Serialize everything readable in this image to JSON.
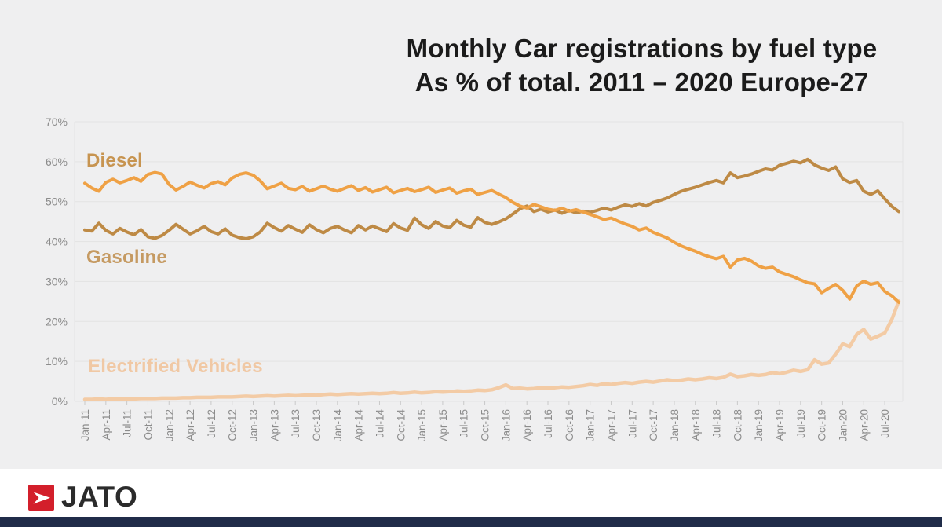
{
  "title": {
    "line1": "Monthly Car registrations by fuel type",
    "line2": "As % of total. 2011 – 2020 Europe-27"
  },
  "chart_data": {
    "type": "line",
    "title": "Monthly Car registrations by fuel type",
    "subtitle": "As % of total. 2011 – 2020 Europe-27",
    "xlabel": "",
    "ylabel": "",
    "ylim": [
      0,
      70
    ],
    "grid": true,
    "legend_position": "inline-left-of-lines",
    "y_ticks": [
      "0%",
      "10%",
      "20%",
      "30%",
      "40%",
      "50%",
      "60%",
      "70%"
    ],
    "x_tick_labels": [
      "Jan-11",
      "Apr-11",
      "Jul-11",
      "Oct-11",
      "Jan-12",
      "Apr-12",
      "Jul-12",
      "Oct-12",
      "Jan-13",
      "Apr-13",
      "Jul-13",
      "Oct-13",
      "Jan-14",
      "Apr-14",
      "Jul-14",
      "Oct-14",
      "Jan-15",
      "Apr-15",
      "Jul-15",
      "Oct-15",
      "Jan-16",
      "Apr-16",
      "Jul-16",
      "Oct-16",
      "Jan-17",
      "Apr-17",
      "Jul-17",
      "Oct-17",
      "Jan-18",
      "Apr-18",
      "Jul-18",
      "Oct-18",
      "Jan-19",
      "Apr-19",
      "Jul-19",
      "Oct-19",
      "Jan-20",
      "Apr-20",
      "Jul-20"
    ],
    "x_months_span": "Jan-2011 to Sep-2020, monthly",
    "series": [
      {
        "name": "Diesel",
        "color": "#EFA145",
        "label_color": "#C79450",
        "values": [
          54.6,
          53.4,
          52.6,
          54.8,
          55.6,
          54.7,
          55.3,
          56.0,
          55.1,
          56.8,
          57.3,
          56.9,
          54.3,
          52.9,
          53.8,
          54.9,
          54.1,
          53.4,
          54.5,
          55.0,
          54.2,
          55.9,
          56.8,
          57.2,
          56.6,
          55.2,
          53.2,
          53.9,
          54.6,
          53.3,
          53.0,
          53.8,
          52.6,
          53.2,
          53.9,
          53.1,
          52.6,
          53.3,
          54.0,
          52.8,
          53.5,
          52.4,
          53.0,
          53.6,
          52.2,
          52.8,
          53.3,
          52.5,
          53.0,
          53.6,
          52.3,
          52.9,
          53.4,
          52.1,
          52.7,
          53.1,
          51.8,
          52.3,
          52.8,
          51.9,
          51.0,
          49.8,
          48.9,
          48.4,
          49.3,
          48.7,
          48.1,
          47.8,
          48.4,
          47.6,
          48.0,
          47.4,
          46.8,
          46.2,
          45.5,
          45.9,
          45.1,
          44.4,
          43.8,
          42.9,
          43.4,
          42.3,
          41.6,
          40.9,
          39.8,
          38.9,
          38.2,
          37.6,
          36.8,
          36.2,
          35.7,
          36.3,
          33.6,
          35.4,
          35.8,
          35.1,
          33.9,
          33.3,
          33.6,
          32.4,
          31.8,
          31.2,
          30.4,
          29.7,
          29.4,
          27.2,
          28.3,
          29.3,
          27.8,
          25.6,
          28.9,
          30.1,
          29.3,
          29.7,
          27.5,
          26.4,
          24.8
        ]
      },
      {
        "name": "Gasoline",
        "color": "#BE8A45",
        "label_color": "#C59A62",
        "values": [
          42.9,
          42.6,
          44.6,
          42.8,
          41.9,
          43.3,
          42.4,
          41.7,
          43.0,
          41.2,
          40.8,
          41.5,
          42.8,
          44.3,
          43.1,
          41.9,
          42.7,
          43.8,
          42.5,
          41.9,
          43.2,
          41.6,
          41.0,
          40.7,
          41.2,
          42.4,
          44.6,
          43.5,
          42.6,
          44.0,
          43.1,
          42.3,
          44.2,
          43.0,
          42.2,
          43.3,
          43.8,
          42.9,
          42.2,
          44.0,
          42.9,
          43.9,
          43.2,
          42.5,
          44.5,
          43.4,
          42.8,
          45.9,
          44.2,
          43.3,
          45.0,
          43.9,
          43.5,
          45.3,
          44.1,
          43.6,
          46.0,
          44.8,
          44.3,
          44.9,
          45.7,
          46.9,
          48.2,
          48.9,
          47.5,
          48.1,
          47.4,
          47.9,
          47.1,
          47.8,
          47.2,
          47.6,
          47.3,
          47.8,
          48.4,
          47.9,
          48.6,
          49.2,
          48.8,
          49.5,
          48.9,
          49.8,
          50.3,
          50.9,
          51.8,
          52.6,
          53.1,
          53.6,
          54.2,
          54.8,
          55.3,
          54.7,
          57.2,
          56.0,
          56.4,
          56.9,
          57.6,
          58.2,
          57.9,
          59.1,
          59.6,
          60.1,
          59.7,
          60.6,
          59.2,
          58.4,
          57.8,
          58.7,
          55.7,
          54.8,
          55.3,
          52.6,
          51.8,
          52.7,
          50.7,
          48.8,
          47.5
        ]
      },
      {
        "name": "Electrified Vehicles",
        "color": "#F3CBA5",
        "label_color": "#F0C8A4",
        "values": [
          0.5,
          0.5,
          0.6,
          0.5,
          0.6,
          0.6,
          0.6,
          0.6,
          0.7,
          0.7,
          0.7,
          0.8,
          0.8,
          0.8,
          0.9,
          0.9,
          1.0,
          1.0,
          1.0,
          1.1,
          1.1,
          1.1,
          1.2,
          1.3,
          1.2,
          1.3,
          1.4,
          1.3,
          1.4,
          1.5,
          1.4,
          1.5,
          1.6,
          1.5,
          1.7,
          1.8,
          1.7,
          1.8,
          1.9,
          1.8,
          1.9,
          2.0,
          1.9,
          2.0,
          2.2,
          2.0,
          2.1,
          2.3,
          2.1,
          2.2,
          2.4,
          2.3,
          2.4,
          2.6,
          2.5,
          2.6,
          2.8,
          2.7,
          2.9,
          3.4,
          4.1,
          3.2,
          3.3,
          3.1,
          3.2,
          3.4,
          3.3,
          3.4,
          3.6,
          3.5,
          3.7,
          3.9,
          4.2,
          4.0,
          4.4,
          4.2,
          4.5,
          4.7,
          4.5,
          4.8,
          5.0,
          4.8,
          5.1,
          5.4,
          5.2,
          5.3,
          5.6,
          5.4,
          5.6,
          5.9,
          5.7,
          6.0,
          6.8,
          6.2,
          6.4,
          6.7,
          6.5,
          6.7,
          7.2,
          6.9,
          7.3,
          7.8,
          7.5,
          7.9,
          10.4,
          9.3,
          9.6,
          11.8,
          14.4,
          13.7,
          16.8,
          18.0,
          15.6,
          16.3,
          17.1,
          20.5,
          25.1
        ]
      }
    ]
  },
  "footer": {
    "logo_text": "JATO",
    "logo_icon": "jato-arrow-icon"
  },
  "colors": {
    "background": "#efeff0",
    "gridline": "#e3e3e3",
    "tick": "#c9c9c9",
    "axis_text": "#8c8c8c",
    "title_text": "#1b1b1b",
    "logo_red": "#d31f2b",
    "logo_text": "#2b2b2b",
    "bottom_bar": "#202c49"
  }
}
